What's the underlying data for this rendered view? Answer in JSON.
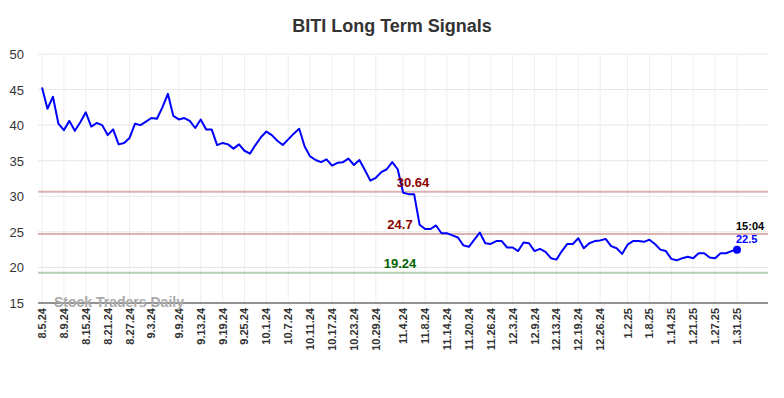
{
  "chart_data": {
    "type": "line",
    "title": "BITI Long Term Signals",
    "watermark": "Stock Traders Daily",
    "color": "#0000ff",
    "grid": true,
    "ylim": [
      15,
      50
    ],
    "yticks": [
      15,
      20,
      25,
      30,
      35,
      40,
      45,
      50
    ],
    "categories": [
      "8.5.24",
      null,
      null,
      null,
      "8.9.24",
      null,
      null,
      null,
      "8.15.24",
      null,
      null,
      null,
      "8.21.24",
      null,
      null,
      null,
      "8.27.24",
      null,
      null,
      null,
      "9.3.24",
      null,
      null,
      null,
      null,
      "9.9.24",
      null,
      null,
      null,
      "9.13.24",
      null,
      null,
      null,
      "9.19.24",
      null,
      null,
      null,
      "9.25.24",
      null,
      null,
      null,
      "10.1.24",
      null,
      null,
      null,
      "10.7.24",
      null,
      null,
      null,
      "10.11.24",
      null,
      null,
      null,
      "10.17.24",
      null,
      null,
      null,
      "10.23.24",
      null,
      null,
      null,
      "10.29.24",
      null,
      null,
      null,
      null,
      "11.4.24",
      null,
      null,
      null,
      "11.8.24",
      null,
      null,
      null,
      "11.14.24",
      null,
      null,
      null,
      "11.20.24",
      null,
      null,
      null,
      "11.26.24",
      null,
      null,
      null,
      "12.3.24",
      null,
      null,
      null,
      "12.9.24",
      null,
      null,
      null,
      "12.13.24",
      null,
      null,
      null,
      "12.19.24",
      null,
      null,
      null,
      "12.26.24",
      null,
      null,
      null,
      null,
      "1.2.25",
      null,
      null,
      null,
      "1.8.25",
      null,
      null,
      null,
      "1.14.25",
      null,
      null,
      null,
      "1.21.25",
      null,
      null,
      null,
      "1.27.25",
      null,
      null,
      null,
      "1.31.25"
    ],
    "values": [
      45.3,
      42.3,
      44.0,
      40.2,
      39.3,
      40.6,
      39.2,
      40.4,
      41.8,
      39.8,
      40.3,
      40.0,
      38.6,
      39.4,
      37.3,
      37.5,
      38.2,
      40.2,
      40.0,
      40.5,
      41.0,
      40.9,
      42.5,
      44.4,
      41.3,
      40.8,
      41.0,
      40.6,
      39.6,
      40.8,
      39.4,
      39.4,
      37.2,
      37.5,
      37.3,
      36.7,
      37.3,
      36.4,
      36.0,
      37.2,
      38.3,
      39.1,
      38.6,
      37.8,
      37.2,
      38.0,
      38.8,
      39.5,
      37.0,
      35.6,
      35.1,
      34.8,
      35.2,
      34.3,
      34.7,
      34.8,
      35.3,
      34.4,
      35.1,
      33.7,
      32.2,
      32.6,
      33.4,
      33.8,
      34.8,
      33.8,
      30.5,
      30.3,
      30.3,
      26.0,
      25.4,
      25.4,
      25.9,
      24.8,
      24.8,
      24.5,
      24.2,
      23.1,
      22.9,
      23.9,
      24.9,
      23.4,
      23.3,
      23.7,
      23.7,
      22.8,
      22.8,
      22.3,
      23.5,
      23.4,
      22.3,
      22.6,
      22.2,
      21.3,
      21.1,
      22.3,
      23.3,
      23.3,
      24.1,
      22.7,
      23.4,
      23.7,
      23.8,
      24.0,
      23.0,
      22.7,
      21.9,
      23.2,
      23.7,
      23.7,
      23.6,
      23.9,
      23.3,
      22.5,
      22.3,
      21.2,
      21.0,
      21.3,
      21.5,
      21.3,
      22.0,
      22.0,
      21.4,
      21.3,
      22.0,
      22.0,
      22.3,
      22.5
    ],
    "reference_lines": [
      {
        "value": 30.64,
        "color": "#8b0000"
      },
      {
        "value": 24.7,
        "color": "#8b0000"
      },
      {
        "value": 19.24,
        "color": "#006400"
      }
    ],
    "last_point": {
      "time": "15:04",
      "value": 22.5
    }
  }
}
